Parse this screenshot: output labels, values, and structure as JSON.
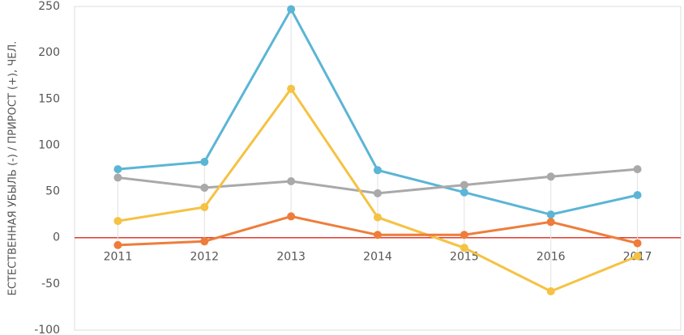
{
  "chart_data": {
    "type": "line",
    "y_label": "ЕСТЕСТВЕННАЯ УБЫЛЬ (-) / ПРИРОСТ (+), ЧЕЛ.",
    "categories": [
      "2011",
      "2012",
      "2013",
      "2014",
      "2015",
      "2016",
      "2017"
    ],
    "series": [
      {
        "color": "#5bb5d5",
        "values": [
          74,
          82,
          247,
          73,
          49,
          25,
          46
        ]
      },
      {
        "color": "#a9a9a9",
        "values": [
          65,
          54,
          61,
          48,
          57,
          66,
          74
        ]
      },
      {
        "color": "#f5c242",
        "values": [
          18,
          33,
          161,
          22,
          -11,
          -58,
          -20
        ]
      },
      {
        "color": "#ee7d3b",
        "values": [
          -8,
          -4,
          23,
          3,
          3,
          17,
          -6
        ]
      }
    ],
    "ylim": [
      -100,
      250
    ],
    "yticks": [
      -100,
      -50,
      0,
      50,
      100,
      150,
      200,
      250
    ],
    "zero_line_color": "#e03c31",
    "grid": true
  }
}
